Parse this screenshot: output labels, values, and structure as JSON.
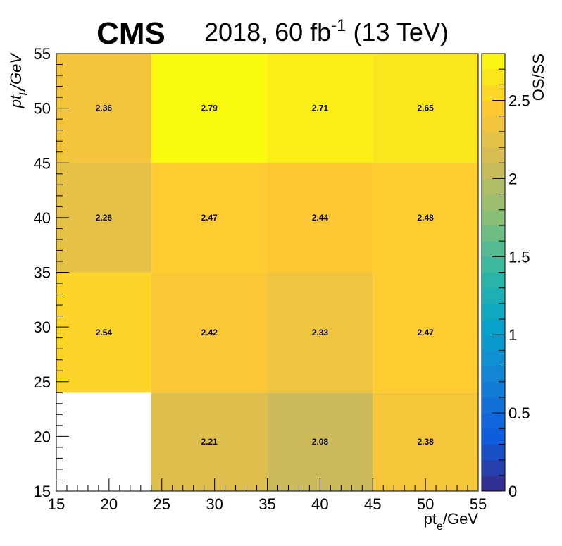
{
  "header": {
    "experiment": "CMS",
    "lumi_prefix": "2018, 60 fb",
    "lumi_exponent": "-1",
    "lumi_suffix": " (13 TeV)"
  },
  "chart_data": {
    "type": "heatmap",
    "xlabel": {
      "base": "pt",
      "sub": "e",
      "unit": "/GeV"
    },
    "ylabel": {
      "base": "pt",
      "sub": "μ",
      "unit": "/GeV"
    },
    "zlabel": "OS/SS",
    "xlim": [
      15,
      55
    ],
    "ylim": [
      15,
      55
    ],
    "zlim": [
      0,
      2.8
    ],
    "x_edges": [
      15,
      24,
      35,
      45,
      55
    ],
    "y_edges": [
      15,
      24,
      35,
      45,
      55
    ],
    "x_ticks": [
      "15",
      "20",
      "25",
      "30",
      "35",
      "40",
      "45",
      "50",
      "55"
    ],
    "y_ticks": [
      "15",
      "20",
      "25",
      "30",
      "35",
      "40",
      "45",
      "50",
      "55"
    ],
    "z_ticks": [
      "0",
      "0.5",
      "1",
      "1.5",
      "2",
      "2.5"
    ],
    "values": [
      [
        null,
        2.21,
        2.08,
        2.38
      ],
      [
        2.54,
        2.42,
        2.33,
        2.47
      ],
      [
        2.26,
        2.47,
        2.44,
        2.48
      ],
      [
        2.36,
        2.79,
        2.71,
        2.65
      ]
    ],
    "labels": [
      [
        null,
        "2.21",
        "2.08",
        "2.38"
      ],
      [
        "2.54",
        "2.42",
        "2.33",
        "2.47"
      ],
      [
        "2.26",
        "2.47",
        "2.44",
        "2.48"
      ],
      [
        "2.36",
        "2.79",
        "2.71",
        "2.65"
      ]
    ],
    "palette": [
      "#352a87",
      "#0f5cdd",
      "#1481d6",
      "#06a4ca",
      "#2eb7a4",
      "#87bf77",
      "#d1bb59",
      "#fec832",
      "#f9fb0e"
    ],
    "grid": false,
    "colorbar_position": "right"
  }
}
